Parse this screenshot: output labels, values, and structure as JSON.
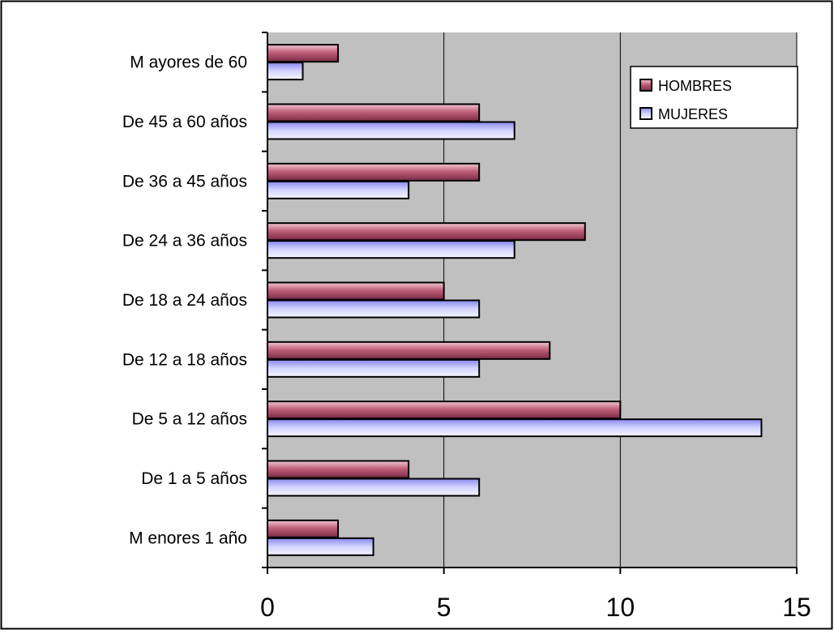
{
  "chart_data": {
    "type": "bar",
    "orientation": "horizontal",
    "categories": [
      "M enores 1 año",
      "De 1 a 5 años",
      "De 5 a 12 años",
      "De 12 a 18 años",
      "De 18 a 24 años",
      "De 24 a 36 años",
      "De 36 a 45 años",
      "De 45 a 60 años",
      "M ayores de 60"
    ],
    "series": [
      {
        "name": "HOMBRES",
        "values": [
          2,
          4,
          10,
          8,
          5,
          9,
          6,
          6,
          2
        ],
        "color": "#c0607a"
      },
      {
        "name": "MUJERES",
        "values": [
          3,
          6,
          14,
          6,
          6,
          7,
          4,
          7,
          1
        ],
        "color": "#b8b8ff"
      }
    ],
    "title": "",
    "xlabel": "",
    "ylabel": "",
    "xlim": [
      0,
      15
    ],
    "x_ticks": [
      0,
      5,
      10,
      15
    ],
    "x_tick_labels": [
      "0",
      "5",
      "10",
      "15"
    ],
    "grid": "vertical",
    "legend": "top-right",
    "plot_background": "#c0c0c0",
    "grid_color": "#000000"
  }
}
